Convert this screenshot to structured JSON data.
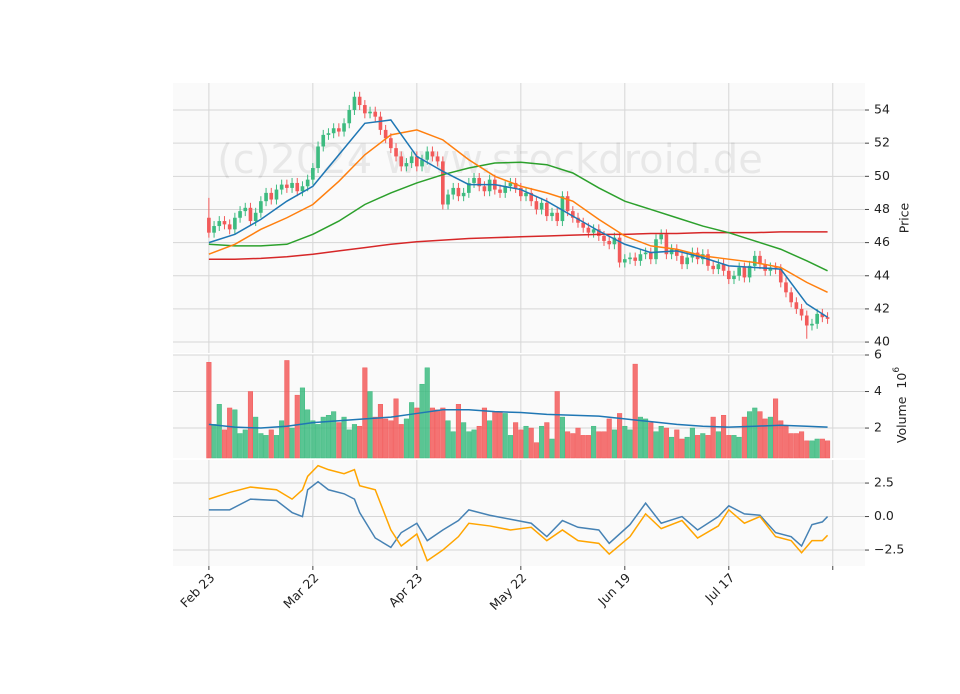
{
  "watermark": "(c)2024 www.stockdroid.de",
  "chart_data": [
    {
      "type": "candlestick",
      "ylabel": "Price",
      "up_color": "#3dbb80",
      "down_color": "#f25a5a",
      "grid": true,
      "xlim": [
        -6.9,
        126.2
      ],
      "xticks": [
        {
          "value": 0,
          "label": "Feb 23"
        },
        {
          "value": 20,
          "label": "Mar 22"
        },
        {
          "value": 40,
          "label": "Apr 23"
        },
        {
          "value": 60,
          "label": "May 22"
        },
        {
          "value": 80,
          "label": "Jun 19"
        },
        {
          "value": 100,
          "label": "Jul 17"
        },
        {
          "value": 120,
          "label": null
        }
      ],
      "ylim": [
        39.34,
        55.63
      ],
      "yticks": [
        40,
        42,
        44,
        46,
        48,
        50,
        52,
        54
      ],
      "open": [
        47.5,
        46.6,
        47.0,
        47.3,
        47.1,
        46.8,
        47.5,
        47.9,
        48.1,
        47.3,
        47.8,
        48.5,
        49.0,
        48.6,
        49.2,
        49.5,
        49.3,
        49.6,
        49.1,
        49.4,
        49.8,
        50.5,
        51.8,
        52.5,
        52.6,
        52.9,
        52.7,
        53.2,
        54.0,
        54.8,
        54.3,
        53.8,
        53.9,
        53.6,
        52.8,
        52.3,
        51.7,
        51.2,
        50.6,
        50.8,
        51.2,
        50.6,
        51.0,
        51.5,
        51.2,
        50.9,
        48.3,
        48.9,
        49.3,
        48.8,
        49.0,
        49.6,
        49.9,
        49.4,
        49.1,
        49.8,
        49.2,
        49.0,
        49.4,
        49.6,
        49.3,
        48.8,
        49.0,
        48.5,
        48.0,
        48.4,
        47.6,
        47.8,
        47.3,
        48.8,
        47.9,
        47.5,
        47.2,
        46.9,
        46.6,
        46.8,
        46.4,
        46.1,
        45.9,
        46.3,
        44.8,
        45.0,
        45.1,
        44.9,
        45.3,
        45.4,
        45.0,
        46.2,
        46.5,
        45.3,
        45.6,
        45.2,
        44.7,
        45.1,
        45.4,
        45.0,
        45.3,
        44.6,
        44.4,
        44.7,
        44.3,
        43.8,
        44.0,
        44.5,
        43.9,
        44.6,
        45.2,
        44.7,
        44.3,
        44.5,
        44.4,
        43.6,
        43.0,
        42.4,
        42.0,
        41.6,
        41.0,
        41.1,
        41.7,
        41.5
      ],
      "high": [
        48.7,
        47.3,
        47.6,
        47.6,
        47.4,
        47.8,
        48.2,
        48.4,
        48.4,
        48.1,
        48.8,
        49.3,
        49.3,
        49.5,
        49.8,
        49.8,
        49.9,
        49.9,
        49.7,
        50.1,
        50.8,
        52.1,
        52.8,
        52.9,
        53.2,
        53.2,
        53.5,
        54.3,
        55.1,
        55.1,
        54.6,
        54.2,
        54.2,
        53.9,
        53.1,
        52.6,
        52.0,
        51.5,
        51.1,
        51.5,
        51.5,
        51.3,
        51.8,
        51.8,
        51.5,
        51.2,
        49.2,
        49.6,
        49.6,
        49.3,
        49.9,
        50.2,
        50.2,
        49.7,
        50.1,
        50.1,
        49.5,
        49.7,
        49.9,
        49.9,
        49.6,
        49.3,
        49.3,
        48.8,
        48.7,
        48.7,
        48.1,
        48.1,
        49.1,
        49.1,
        48.2,
        47.8,
        47.5,
        47.2,
        47.1,
        47.1,
        46.7,
        46.4,
        46.6,
        46.6,
        45.3,
        45.4,
        45.4,
        45.6,
        45.7,
        45.7,
        46.5,
        46.8,
        46.8,
        45.9,
        45.9,
        45.5,
        45.4,
        45.7,
        45.7,
        45.6,
        45.6,
        44.9,
        45.0,
        45.0,
        44.6,
        44.3,
        44.8,
        44.8,
        44.9,
        45.5,
        45.5,
        45.0,
        44.8,
        44.8,
        44.7,
        43.9,
        43.3,
        42.7,
        42.3,
        41.9,
        41.4,
        42.0,
        42.0,
        41.8
      ],
      "low": [
        46.3,
        46.3,
        46.7,
        46.8,
        46.5,
        46.5,
        47.2,
        47.6,
        47.0,
        47.0,
        47.5,
        48.2,
        48.3,
        48.3,
        48.9,
        49.0,
        49.0,
        48.8,
        48.8,
        49.1,
        49.5,
        50.2,
        51.5,
        52.2,
        52.3,
        52.4,
        52.4,
        52.9,
        53.7,
        54.0,
        53.5,
        53.5,
        53.3,
        52.5,
        52.0,
        51.4,
        50.9,
        50.3,
        50.3,
        50.5,
        50.3,
        50.3,
        50.7,
        50.9,
        50.6,
        48.0,
        48.0,
        48.6,
        48.5,
        48.5,
        48.7,
        49.3,
        49.1,
        48.8,
        48.8,
        48.9,
        48.7,
        48.7,
        49.1,
        49.0,
        48.5,
        48.5,
        48.2,
        47.7,
        47.7,
        47.3,
        47.3,
        47.0,
        47.0,
        47.6,
        47.2,
        46.9,
        46.6,
        46.3,
        46.3,
        46.1,
        45.8,
        45.6,
        45.6,
        44.5,
        44.5,
        44.7,
        44.6,
        44.6,
        45.0,
        44.7,
        44.7,
        45.9,
        45.0,
        45.0,
        44.9,
        44.4,
        44.4,
        44.8,
        44.7,
        44.7,
        44.3,
        44.1,
        44.1,
        44.0,
        43.5,
        43.5,
        43.7,
        43.6,
        43.6,
        44.3,
        44.4,
        44.0,
        44.0,
        44.1,
        43.3,
        42.7,
        42.1,
        41.7,
        41.3,
        40.2,
        40.7,
        40.8,
        41.2,
        41.1
      ],
      "close": [
        46.6,
        47.0,
        47.3,
        47.1,
        46.8,
        47.5,
        47.9,
        48.1,
        47.3,
        47.8,
        48.5,
        49.0,
        48.6,
        49.2,
        49.5,
        49.3,
        49.6,
        49.1,
        49.4,
        49.8,
        50.5,
        51.8,
        52.5,
        52.6,
        52.9,
        52.7,
        53.2,
        54.0,
        54.8,
        54.3,
        53.8,
        53.9,
        53.6,
        52.8,
        52.3,
        51.7,
        51.2,
        50.6,
        50.8,
        51.2,
        50.6,
        51.0,
        51.5,
        51.2,
        50.9,
        48.3,
        48.9,
        49.3,
        48.8,
        49.0,
        49.6,
        49.9,
        49.4,
        49.1,
        49.8,
        49.2,
        49.0,
        49.4,
        49.6,
        49.3,
        48.8,
        49.0,
        48.5,
        48.0,
        48.4,
        47.6,
        47.8,
        47.3,
        48.8,
        47.9,
        47.5,
        47.2,
        46.9,
        46.6,
        46.8,
        46.4,
        46.1,
        45.9,
        46.3,
        44.8,
        45.0,
        45.1,
        44.9,
        45.3,
        45.4,
        45.0,
        46.2,
        46.5,
        45.3,
        45.6,
        45.2,
        44.7,
        45.1,
        45.4,
        45.0,
        45.3,
        44.6,
        44.4,
        44.7,
        44.3,
        43.8,
        44.0,
        44.5,
        43.9,
        44.6,
        45.2,
        44.7,
        44.3,
        44.5,
        44.4,
        43.6,
        43.0,
        42.4,
        42.0,
        41.6,
        41.0,
        41.1,
        41.7,
        41.5,
        41.4
      ],
      "series": [
        {
          "color": "#d62728",
          "x": [
            0,
            5,
            10,
            15,
            20,
            25,
            30,
            35,
            40,
            45,
            50,
            55,
            60,
            65,
            70,
            75,
            80,
            85,
            90,
            95,
            100,
            105,
            110,
            115,
            119
          ],
          "values": [
            45.0,
            45.0,
            45.05,
            45.15,
            45.3,
            45.5,
            45.7,
            45.9,
            46.05,
            46.15,
            46.25,
            46.3,
            46.35,
            46.4,
            46.45,
            46.5,
            46.5,
            46.55,
            46.55,
            46.6,
            46.6,
            46.6,
            46.65,
            46.65,
            46.65
          ]
        },
        {
          "color": "#2ca02c",
          "x": [
            0,
            5,
            10,
            15,
            20,
            25,
            30,
            35,
            40,
            45,
            50,
            55,
            60,
            65,
            70,
            75,
            80,
            85,
            90,
            95,
            100,
            105,
            110,
            115,
            119
          ],
          "values": [
            45.9,
            45.8,
            45.8,
            45.9,
            46.5,
            47.3,
            48.3,
            49.0,
            49.6,
            50.1,
            50.5,
            50.8,
            50.85,
            50.7,
            50.2,
            49.3,
            48.5,
            48.0,
            47.5,
            47.0,
            46.6,
            46.1,
            45.6,
            44.9,
            44.3
          ]
        },
        {
          "color": "#ff7f0e",
          "x": [
            0,
            5,
            10,
            15,
            20,
            25,
            30,
            35,
            40,
            45,
            50,
            55,
            60,
            65,
            70,
            75,
            80,
            85,
            90,
            95,
            100,
            105,
            110,
            115,
            119
          ],
          "values": [
            45.3,
            45.9,
            46.8,
            47.5,
            48.3,
            49.7,
            51.3,
            52.5,
            52.8,
            52.2,
            51.0,
            50.0,
            49.4,
            49.0,
            48.5,
            47.4,
            46.4,
            45.8,
            45.6,
            45.2,
            45.0,
            44.8,
            44.5,
            43.6,
            43.0
          ]
        },
        {
          "color": "#1f77b4",
          "x": [
            0,
            5,
            10,
            15,
            20,
            25,
            30,
            35,
            40,
            45,
            50,
            55,
            60,
            65,
            70,
            75,
            80,
            85,
            90,
            95,
            100,
            105,
            110,
            115,
            119
          ],
          "values": [
            46.0,
            46.5,
            47.4,
            48.5,
            49.4,
            51.3,
            53.2,
            53.4,
            51.2,
            50.3,
            49.5,
            49.5,
            49.2,
            48.5,
            47.6,
            46.7,
            45.9,
            45.4,
            45.5,
            45.1,
            44.6,
            44.5,
            44.4,
            42.3,
            41.5
          ]
        }
      ]
    },
    {
      "type": "volume",
      "ylabel": "Volume",
      "offset_base": "10",
      "offset_exp": "6",
      "grid": true,
      "ylim": [
        0.36,
        6.0
      ],
      "yticks": [
        2,
        4,
        6
      ],
      "values": [
        5.6,
        2.2,
        3.3,
        1.9,
        3.1,
        3.0,
        1.7,
        1.9,
        4.0,
        2.6,
        1.7,
        1.6,
        1.9,
        1.6,
        2.4,
        5.7,
        2.0,
        3.8,
        4.2,
        3.0,
        2.4,
        2.2,
        2.6,
        2.7,
        2.9,
        2.3,
        2.6,
        1.9,
        2.2,
        2.1,
        5.3,
        4.0,
        2.6,
        3.3,
        2.5,
        2.4,
        3.6,
        2.2,
        2.5,
        3.4,
        3.1,
        4.4,
        5.3,
        3.1,
        3.0,
        3.1,
        2.4,
        1.8,
        3.3,
        2.3,
        1.8,
        1.9,
        2.1,
        3.1,
        2.4,
        2.9,
        2.9,
        2.8,
        1.6,
        2.3,
        1.9,
        2.1,
        2.0,
        1.2,
        2.1,
        2.3,
        1.4,
        4.0,
        2.6,
        1.8,
        1.7,
        2.0,
        1.6,
        1.6,
        2.1,
        1.8,
        1.8,
        2.5,
        1.9,
        2.8,
        2.1,
        1.9,
        5.5,
        2.6,
        2.5,
        2.3,
        1.8,
        2.1,
        2.0,
        1.5,
        1.9,
        1.4,
        1.5,
        2.0,
        1.6,
        1.7,
        1.6,
        2.6,
        1.8,
        2.7,
        1.6,
        1.6,
        1.5,
        2.6,
        2.9,
        3.1,
        2.9,
        2.5,
        2.6,
        3.6,
        2.4,
        2.1,
        1.7,
        1.7,
        1.8,
        1.3,
        1.3,
        1.4,
        1.4,
        1.3
      ],
      "series": [
        {
          "color": "#1f77b4",
          "x": [
            0,
            5,
            10,
            15,
            20,
            25,
            30,
            35,
            40,
            45,
            50,
            55,
            60,
            65,
            70,
            75,
            80,
            85,
            90,
            95,
            100,
            105,
            110,
            115,
            119
          ],
          "values": [
            2.2,
            2.05,
            2.0,
            2.1,
            2.3,
            2.4,
            2.5,
            2.6,
            2.8,
            3.0,
            3.0,
            2.9,
            2.85,
            2.75,
            2.7,
            2.65,
            2.5,
            2.35,
            2.2,
            2.1,
            2.05,
            2.1,
            2.15,
            2.1,
            2.05
          ]
        }
      ]
    },
    {
      "type": "line",
      "grid": true,
      "ylim": [
        -3.69,
        4.22
      ],
      "yticks": [
        {
          "value": -2.5,
          "label": "−2.5"
        },
        {
          "value": 0,
          "label": "0.0"
        },
        2.5
      ],
      "series": [
        {
          "color": "#4682b4",
          "x": [
            0,
            4,
            8,
            13,
            16,
            18,
            19,
            21,
            23,
            26,
            28,
            29,
            32,
            35,
            37,
            40,
            42,
            45,
            48,
            50,
            54,
            58,
            62,
            65,
            68,
            71,
            75,
            77,
            81,
            84,
            87,
            91,
            94,
            98,
            100,
            103,
            106,
            109,
            112,
            114,
            116,
            118,
            119
          ],
          "values": [
            0.5,
            0.5,
            1.3,
            1.2,
            0.3,
            0.0,
            2.0,
            2.6,
            2.0,
            1.7,
            1.3,
            0.3,
            -1.6,
            -2.3,
            -1.2,
            -0.5,
            -1.8,
            -1.0,
            -0.3,
            0.5,
            0.1,
            -0.2,
            -0.5,
            -1.5,
            -0.3,
            -0.8,
            -1.0,
            -2.0,
            -0.6,
            1.0,
            -0.5,
            0.0,
            -1.0,
            0.0,
            0.8,
            0.2,
            0.1,
            -1.2,
            -1.5,
            -2.2,
            -0.6,
            -0.4,
            0.0
          ]
        },
        {
          "color": "#ffa500",
          "x": [
            0,
            4,
            8,
            13,
            16,
            18,
            19,
            21,
            23,
            26,
            28,
            29,
            32,
            35,
            37,
            40,
            42,
            45,
            48,
            50,
            54,
            58,
            62,
            65,
            68,
            71,
            75,
            77,
            81,
            84,
            87,
            91,
            94,
            98,
            100,
            103,
            106,
            109,
            112,
            114,
            116,
            118,
            119
          ],
          "values": [
            1.3,
            1.8,
            2.2,
            2.0,
            1.3,
            2.0,
            3.0,
            3.8,
            3.5,
            3.2,
            3.5,
            2.3,
            2.0,
            -1.0,
            -2.2,
            -1.3,
            -3.3,
            -2.5,
            -1.5,
            -0.5,
            -0.7,
            -1.0,
            -0.8,
            -1.8,
            -1.0,
            -1.8,
            -2.0,
            -2.8,
            -1.5,
            0.2,
            -0.9,
            -0.3,
            -1.6,
            -0.7,
            0.5,
            -0.5,
            0.0,
            -1.5,
            -1.8,
            -2.7,
            -1.8,
            -1.8,
            -1.4
          ]
        }
      ]
    }
  ]
}
